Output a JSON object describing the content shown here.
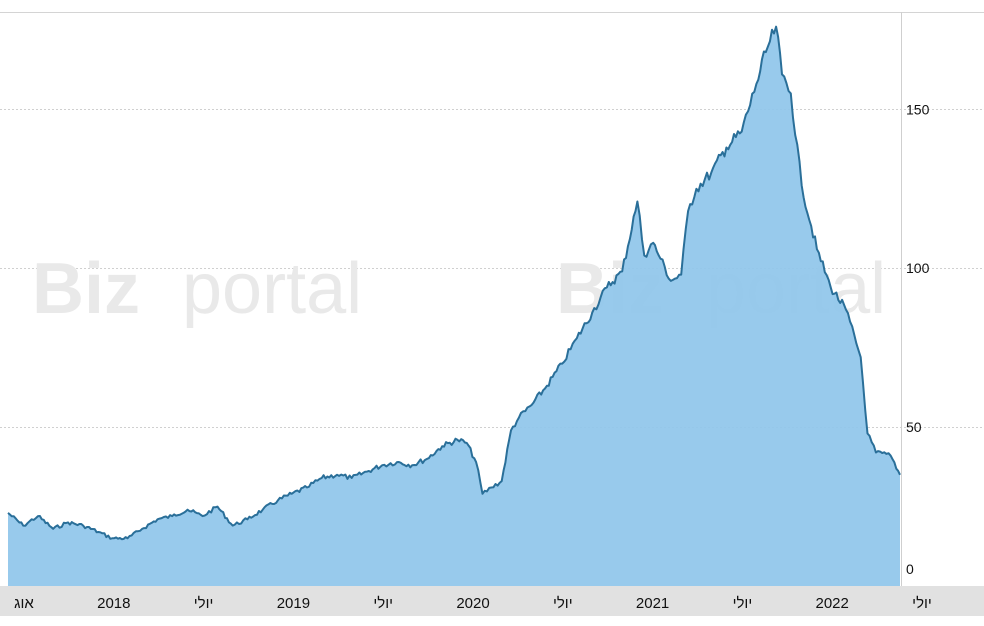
{
  "watermark": {
    "brand_bold": "Biz",
    "brand_light": "portal"
  },
  "chart_data": {
    "type": "area",
    "x_tick_labels": [
      "אוג",
      "2018",
      "יולי",
      "2019",
      "יולי",
      "2020",
      "יולי",
      "2021",
      "יולי",
      "2022",
      "יולי"
    ],
    "y_ticks": [
      0,
      50,
      100,
      150
    ],
    "ylim": [
      0,
      180
    ],
    "xlim": [
      "2017-08-01",
      "2022-07-20"
    ],
    "grid": true,
    "axis_position": "right",
    "fill_color": "#8fc6ea",
    "line_color": "#2a6f99",
    "axis_band_color": "#e1e1e1",
    "x": [
      "2017-08-01",
      "2017-09-01",
      "2017-10-01",
      "2017-11-01",
      "2017-12-01",
      "2018-01-01",
      "2018-02-01",
      "2018-03-01",
      "2018-04-01",
      "2018-05-01",
      "2018-06-01",
      "2018-07-01",
      "2018-08-01",
      "2018-09-01",
      "2018-10-01",
      "2018-11-01",
      "2018-12-01",
      "2019-01-01",
      "2019-02-01",
      "2019-03-01",
      "2019-04-01",
      "2019-05-01",
      "2019-06-01",
      "2019-07-01",
      "2019-08-01",
      "2019-09-01",
      "2019-10-01",
      "2019-11-01",
      "2019-12-01",
      "2020-01-01",
      "2020-02-01",
      "2020-02-20",
      "2020-03-10",
      "2020-03-23",
      "2020-04-10",
      "2020-05-01",
      "2020-05-20",
      "2020-06-05",
      "2020-07-01",
      "2020-08-01",
      "2020-09-01",
      "2020-10-01",
      "2020-11-01",
      "2020-12-01",
      "2021-01-01",
      "2021-02-01",
      "2021-02-15",
      "2021-03-05",
      "2021-03-20",
      "2021-04-10",
      "2021-05-01",
      "2021-05-15",
      "2021-06-01",
      "2021-07-01",
      "2021-08-01",
      "2021-09-01",
      "2021-10-01",
      "2021-10-20",
      "2021-11-10",
      "2021-11-22",
      "2021-12-10",
      "2022-01-01",
      "2022-02-01",
      "2022-03-01",
      "2022-04-01",
      "2022-05-01",
      "2022-05-15",
      "2022-06-01",
      "2022-07-01",
      "2022-07-20"
    ],
    "y": [
      23,
      19,
      22,
      18,
      20,
      19,
      17,
      15,
      15,
      18,
      21,
      22,
      24,
      22,
      25,
      19,
      21,
      24,
      27,
      29,
      31,
      34,
      35,
      34,
      36,
      38,
      39,
      38,
      40,
      44,
      46,
      45,
      39,
      29,
      31,
      33,
      49,
      53,
      57,
      63,
      70,
      78,
      86,
      94,
      99,
      121,
      104,
      108,
      103,
      96,
      98,
      118,
      125,
      130,
      138,
      143,
      158,
      168,
      176,
      161,
      155,
      126,
      106,
      94,
      87,
      72,
      48,
      42,
      41,
      35
    ]
  }
}
